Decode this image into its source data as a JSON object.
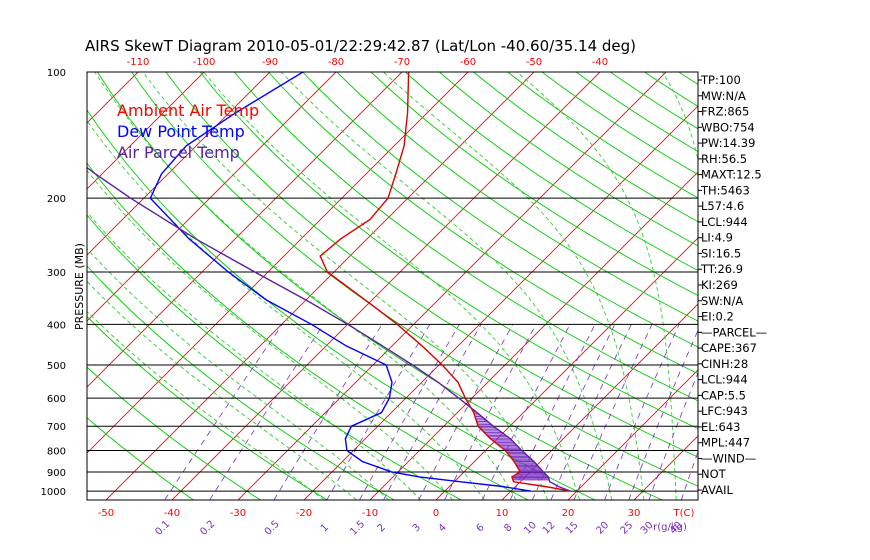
{
  "chart_data": {
    "type": "line",
    "title": "AIRS SkewT Diagram 2010-05-01/22:29:42.87 (Lat/Lon -40.60/35.14 deg)",
    "ylabel": "PRESSURE (MB)",
    "xlabel_bottom": "T(C)",
    "mixing_ratio_label": "r(g/kg)",
    "pressure_ticks": [
      100,
      200,
      300,
      400,
      500,
      600,
      700,
      800,
      900,
      1000
    ],
    "top_temperature_ticks": [
      -120,
      -110,
      -100,
      -90,
      -80,
      -70,
      -60,
      -50,
      -40
    ],
    "bottom_temperature_ticks": [
      -50,
      -40,
      -30,
      -20,
      -10,
      0,
      10,
      20,
      30
    ],
    "mixing_ratio_ticks": [
      0.1,
      0.2,
      0.5,
      1,
      1.5,
      2,
      3,
      4,
      6,
      8,
      10,
      12,
      15,
      20,
      25,
      30,
      40
    ],
    "legend": [
      {
        "name": "Ambient Air Temp",
        "color": "#ff0000"
      },
      {
        "name": "Dew Point Temp",
        "color": "#0000ff"
      },
      {
        "name": "Air Parcel Temp",
        "color": "#5a20a0"
      }
    ],
    "series": [
      {
        "name": "Ambient Air Temp",
        "color": "#dd0000",
        "points": [
          {
            "p": 1000,
            "t": 19.0
          },
          {
            "p": 975,
            "t": 14.5
          },
          {
            "p": 950,
            "t": 9.0
          },
          {
            "p": 925,
            "t": 8.0
          },
          {
            "p": 900,
            "t": 8.5
          },
          {
            "p": 850,
            "t": 6.0
          },
          {
            "p": 800,
            "t": 3.0
          },
          {
            "p": 750,
            "t": -1.0
          },
          {
            "p": 700,
            "t": -4.8
          },
          {
            "p": 650,
            "t": -7.5
          },
          {
            "p": 600,
            "t": -11.0
          },
          {
            "p": 550,
            "t": -14.5
          },
          {
            "p": 500,
            "t": -19.5
          },
          {
            "p": 450,
            "t": -25.5
          },
          {
            "p": 400,
            "t": -32.5
          },
          {
            "p": 350,
            "t": -41.0
          },
          {
            "p": 300,
            "t": -51.0
          },
          {
            "p": 275,
            "t": -54.5
          },
          {
            "p": 250,
            "t": -54.0
          },
          {
            "p": 225,
            "t": -52.5
          },
          {
            "p": 200,
            "t": -53.0
          },
          {
            "p": 175,
            "t": -55.5
          },
          {
            "p": 150,
            "t": -58.5
          },
          {
            "p": 125,
            "t": -63.0
          },
          {
            "p": 100,
            "t": -69.0
          }
        ]
      },
      {
        "name": "Dew Point Temp",
        "color": "#0000ff",
        "points": [
          {
            "p": 1000,
            "t": 13.0
          },
          {
            "p": 975,
            "t": 8.0
          },
          {
            "p": 950,
            "t": 1.0
          },
          {
            "p": 925,
            "t": -6.0
          },
          {
            "p": 900,
            "t": -11.0
          },
          {
            "p": 850,
            "t": -17.0
          },
          {
            "p": 800,
            "t": -21.0
          },
          {
            "p": 750,
            "t": -23.0
          },
          {
            "p": 700,
            "t": -24.0
          },
          {
            "p": 650,
            "t": -21.5
          },
          {
            "p": 600,
            "t": -22.5
          },
          {
            "p": 550,
            "t": -24.5
          },
          {
            "p": 500,
            "t": -28.0
          },
          {
            "p": 450,
            "t": -37.0
          },
          {
            "p": 400,
            "t": -45.5
          },
          {
            "p": 350,
            "t": -56.0
          },
          {
            "p": 300,
            "t": -66.0
          },
          {
            "p": 250,
            "t": -77.0
          },
          {
            "p": 200,
            "t": -89.0
          },
          {
            "p": 175,
            "t": -91.0
          },
          {
            "p": 150,
            "t": -91.5
          },
          {
            "p": 125,
            "t": -89.0
          },
          {
            "p": 100,
            "t": -85.0
          }
        ]
      },
      {
        "name": "Air Parcel Temp",
        "color": "#5a20a0",
        "points": [
          {
            "p": 1000,
            "t": 19.0
          },
          {
            "p": 975,
            "t": 16.5
          },
          {
            "p": 950,
            "t": 14.5
          },
          {
            "p": 925,
            "t": 13.5
          },
          {
            "p": 900,
            "t": 12.0
          },
          {
            "p": 850,
            "t": 9.0
          },
          {
            "p": 800,
            "t": 5.5
          },
          {
            "p": 750,
            "t": 2.0
          },
          {
            "p": 700,
            "t": -2.5
          },
          {
            "p": 650,
            "t": -7.0
          },
          {
            "p": 600,
            "t": -12.0
          },
          {
            "p": 550,
            "t": -17.5
          },
          {
            "p": 500,
            "t": -24.0
          },
          {
            "p": 450,
            "t": -31.5
          },
          {
            "p": 400,
            "t": -40.0
          },
          {
            "p": 350,
            "t": -50.0
          },
          {
            "p": 300,
            "t": -62.0
          },
          {
            "p": 250,
            "t": -76.0
          },
          {
            "p": 200,
            "t": -92.0
          },
          {
            "p": 175,
            "t": -101.0
          },
          {
            "p": 150,
            "t": -111.0
          },
          {
            "p": 125,
            "t": -122.0
          },
          {
            "p": 100,
            "t": -134.0
          }
        ]
      }
    ],
    "side_panel": [
      "TP:100",
      "MW:N/A",
      "FRZ:865",
      "WBO:754",
      "PW:14.39",
      "RH:56.5",
      "MAXT:12.5",
      "TH:5463",
      "L57:4.6",
      "LCL:944",
      "LI:4.9",
      "SI:16.5",
      "TT:26.9",
      "KI:269",
      "SW:N/A",
      "EI:0.2",
      "—PARCEL—",
      "CAPE:367",
      "CINH:28",
      "LCL:944",
      "CAP:5.5",
      "LFC:943",
      "EL:643",
      "MPL:447",
      "—WIND—",
      "NOT",
      "AVAIL"
    ],
    "colors": {
      "isotherm": "#ff0000",
      "dry_adiabat": "#00cc00",
      "moist_adiabat": "#33cc33",
      "mixing_ratio": "#7a2fc4",
      "isobar": "#000000",
      "hatch": "#7a2fc4"
    },
    "grid": true,
    "pressure_scale": "log"
  }
}
